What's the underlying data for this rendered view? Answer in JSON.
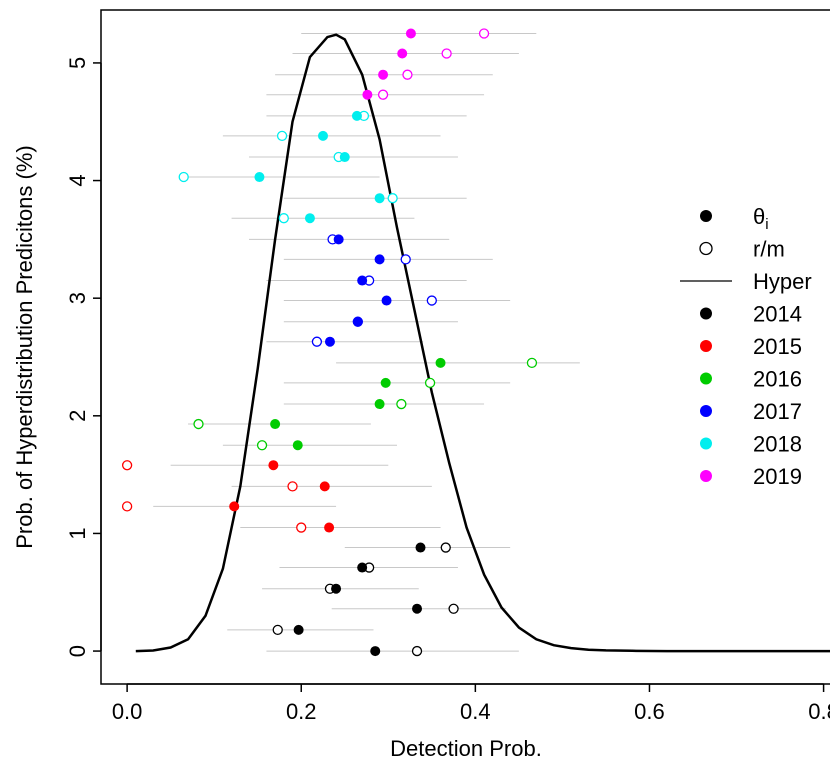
{
  "chart_data": {
    "type": "scatter",
    "xlabel": "Detection Prob.",
    "ylabel": "Prob. of Hyperdistribution Predicitons (%)",
    "xlim": [
      -0.03,
      0.82
    ],
    "ylim": [
      -0.28,
      5.45
    ],
    "xticks": [
      "0.0",
      "0.2",
      "0.4",
      "0.6",
      "0.8"
    ],
    "xtick_values": [
      0,
      0.2,
      0.4,
      0.6,
      0.8
    ],
    "yticks": [
      "0",
      "1",
      "2",
      "3",
      "4",
      "5"
    ],
    "ytick_values": [
      0,
      1,
      2,
      3,
      4,
      5
    ],
    "legend": {
      "placement": "right",
      "symbol_items": [
        {
          "label": "θ",
          "sub": "i",
          "kind": "filled"
        },
        {
          "label": "r/m",
          "kind": "open"
        },
        {
          "label": "Hyper",
          "kind": "line"
        }
      ],
      "year_items": [
        {
          "label": "2014",
          "color": "#000000"
        },
        {
          "label": "2015",
          "color": "#ff0000"
        },
        {
          "label": "2016",
          "color": "#00cc00"
        },
        {
          "label": "2017",
          "color": "#0000ff"
        },
        {
          "label": "2018",
          "color": "#00eeee"
        },
        {
          "label": "2019",
          "color": "#ff00ff"
        }
      ]
    },
    "hyper_curve": {
      "x": [
        0.01,
        0.03,
        0.05,
        0.07,
        0.09,
        0.11,
        0.13,
        0.15,
        0.17,
        0.19,
        0.21,
        0.23,
        0.24,
        0.25,
        0.27,
        0.29,
        0.31,
        0.33,
        0.35,
        0.37,
        0.39,
        0.41,
        0.43,
        0.45,
        0.47,
        0.49,
        0.51,
        0.53,
        0.55,
        0.58,
        0.62,
        0.7,
        0.82
      ],
      "y": [
        0.0,
        0.005,
        0.03,
        0.1,
        0.3,
        0.7,
        1.4,
        2.4,
        3.5,
        4.5,
        5.05,
        5.22,
        5.24,
        5.2,
        4.9,
        4.35,
        3.6,
        2.9,
        2.2,
        1.6,
        1.05,
        0.65,
        0.37,
        0.2,
        0.1,
        0.05,
        0.025,
        0.012,
        0.006,
        0.002,
        0.0,
        0.0,
        0.0
      ]
    },
    "points": [
      {
        "year": "2014",
        "y": 0.0,
        "theta": 0.285,
        "rm": 0.333,
        "lo": 0.16,
        "hi": 0.45
      },
      {
        "year": "2014",
        "y": 0.18,
        "theta": 0.197,
        "rm": 0.173,
        "lo": 0.115,
        "hi": 0.283
      },
      {
        "year": "2014",
        "y": 0.36,
        "theta": 0.333,
        "rm": 0.375,
        "lo": 0.235,
        "hi": 0.435
      },
      {
        "year": "2014",
        "y": 0.53,
        "theta": 0.24,
        "rm": 0.233,
        "lo": 0.155,
        "hi": 0.335
      },
      {
        "year": "2014",
        "y": 0.71,
        "theta": 0.27,
        "rm": 0.278,
        "lo": 0.175,
        "hi": 0.38
      },
      {
        "year": "2014",
        "y": 0.88,
        "theta": 0.337,
        "rm": 0.366,
        "lo": 0.25,
        "hi": 0.44
      },
      {
        "year": "2015",
        "y": 1.05,
        "theta": 0.232,
        "rm": 0.2,
        "lo": 0.13,
        "hi": 0.36
      },
      {
        "year": "2015",
        "y": 1.23,
        "theta": 0.123,
        "rm": 0.0,
        "lo": 0.03,
        "hi": 0.24
      },
      {
        "year": "2015",
        "y": 1.4,
        "theta": 0.227,
        "rm": 0.19,
        "lo": 0.12,
        "hi": 0.35
      },
      {
        "year": "2015",
        "y": 1.58,
        "theta": 0.168,
        "rm": 0.0,
        "lo": 0.05,
        "hi": 0.3
      },
      {
        "year": "2016",
        "y": 1.75,
        "theta": 0.196,
        "rm": 0.155,
        "lo": 0.11,
        "hi": 0.31
      },
      {
        "year": "2016",
        "y": 1.93,
        "theta": 0.17,
        "rm": 0.082,
        "lo": 0.07,
        "hi": 0.28
      },
      {
        "year": "2016",
        "y": 2.1,
        "theta": 0.29,
        "rm": 0.315,
        "lo": 0.18,
        "hi": 0.41
      },
      {
        "year": "2016",
        "y": 2.28,
        "theta": 0.297,
        "rm": 0.348,
        "lo": 0.18,
        "hi": 0.44
      },
      {
        "year": "2016",
        "y": 2.45,
        "theta": 0.36,
        "rm": 0.465,
        "lo": 0.24,
        "hi": 0.52
      },
      {
        "year": "2017",
        "y": 2.63,
        "theta": 0.233,
        "rm": 0.218,
        "lo": 0.16,
        "hi": 0.34
      },
      {
        "year": "2017",
        "y": 2.8,
        "theta": 0.265,
        "rm": 0.265,
        "lo": 0.18,
        "hi": 0.38
      },
      {
        "year": "2017",
        "y": 2.98,
        "theta": 0.298,
        "rm": 0.35,
        "lo": 0.18,
        "hi": 0.44
      },
      {
        "year": "2017",
        "y": 3.15,
        "theta": 0.27,
        "rm": 0.278,
        "lo": 0.16,
        "hi": 0.39
      },
      {
        "year": "2017",
        "y": 3.33,
        "theta": 0.29,
        "rm": 0.32,
        "lo": 0.18,
        "hi": 0.42
      },
      {
        "year": "2017",
        "y": 3.5,
        "theta": 0.243,
        "rm": 0.236,
        "lo": 0.14,
        "hi": 0.37
      },
      {
        "year": "2018",
        "y": 3.68,
        "theta": 0.21,
        "rm": 0.18,
        "lo": 0.12,
        "hi": 0.33
      },
      {
        "year": "2018",
        "y": 3.85,
        "theta": 0.29,
        "rm": 0.305,
        "lo": 0.18,
        "hi": 0.39
      },
      {
        "year": "2018",
        "y": 4.03,
        "theta": 0.152,
        "rm": 0.065,
        "lo": 0.06,
        "hi": 0.29
      },
      {
        "year": "2018",
        "y": 4.2,
        "theta": 0.25,
        "rm": 0.243,
        "lo": 0.14,
        "hi": 0.38
      },
      {
        "year": "2018",
        "y": 4.38,
        "theta": 0.225,
        "rm": 0.178,
        "lo": 0.11,
        "hi": 0.36
      },
      {
        "year": "2018",
        "y": 4.55,
        "theta": 0.264,
        "rm": 0.272,
        "lo": 0.16,
        "hi": 0.39
      },
      {
        "year": "2019",
        "y": 4.73,
        "theta": 0.276,
        "rm": 0.294,
        "lo": 0.16,
        "hi": 0.41
      },
      {
        "year": "2019",
        "y": 4.9,
        "theta": 0.294,
        "rm": 0.322,
        "lo": 0.17,
        "hi": 0.42
      },
      {
        "year": "2019",
        "y": 5.08,
        "theta": 0.316,
        "rm": 0.367,
        "lo": 0.19,
        "hi": 0.45
      },
      {
        "year": "2019",
        "y": 5.25,
        "theta": 0.326,
        "rm": 0.41,
        "lo": 0.2,
        "hi": 0.47
      }
    ]
  }
}
